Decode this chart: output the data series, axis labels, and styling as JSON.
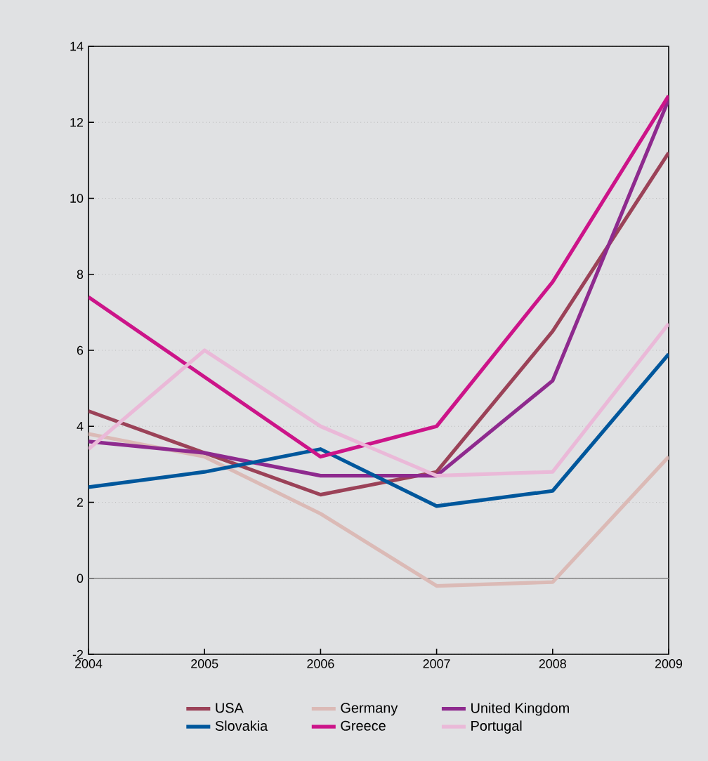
{
  "chart_data": {
    "type": "line",
    "x": [
      2004,
      2005,
      2006,
      2007,
      2008,
      2009
    ],
    "series": [
      {
        "name": "USA",
        "color": "#9b4258",
        "values": [
          4.4,
          3.3,
          2.2,
          2.8,
          6.5,
          11.2
        ]
      },
      {
        "name": "Slovakia",
        "color": "#00579c",
        "values": [
          2.4,
          2.8,
          3.4,
          1.9,
          2.3,
          5.9
        ]
      },
      {
        "name": "Germany",
        "color": "#dbbab6",
        "values": [
          3.8,
          3.2,
          1.7,
          -0.2,
          -0.1,
          3.2
        ]
      },
      {
        "name": "Greece",
        "color": "#cc1489",
        "values": [
          7.4,
          5.3,
          3.2,
          4.0,
          7.8,
          12.7
        ]
      },
      {
        "name": "United Kingdom",
        "color": "#8e2a8e",
        "values": [
          3.6,
          3.3,
          2.7,
          2.7,
          5.2,
          12.6
        ]
      },
      {
        "name": "Portugal",
        "color": "#eab9d8",
        "values": [
          3.4,
          6.0,
          4.0,
          2.7,
          2.8,
          6.7
        ]
      }
    ],
    "xlim": [
      2004,
      2009
    ],
    "xticks": [
      2004,
      2005,
      2006,
      2007,
      2008,
      2009
    ],
    "ylim": [
      -2,
      14
    ],
    "yticks": [
      -2,
      0,
      2,
      4,
      6,
      8,
      10,
      12,
      14
    ],
    "grid": "y",
    "legend": "bottom",
    "marker": "none",
    "line_style": "solid"
  }
}
